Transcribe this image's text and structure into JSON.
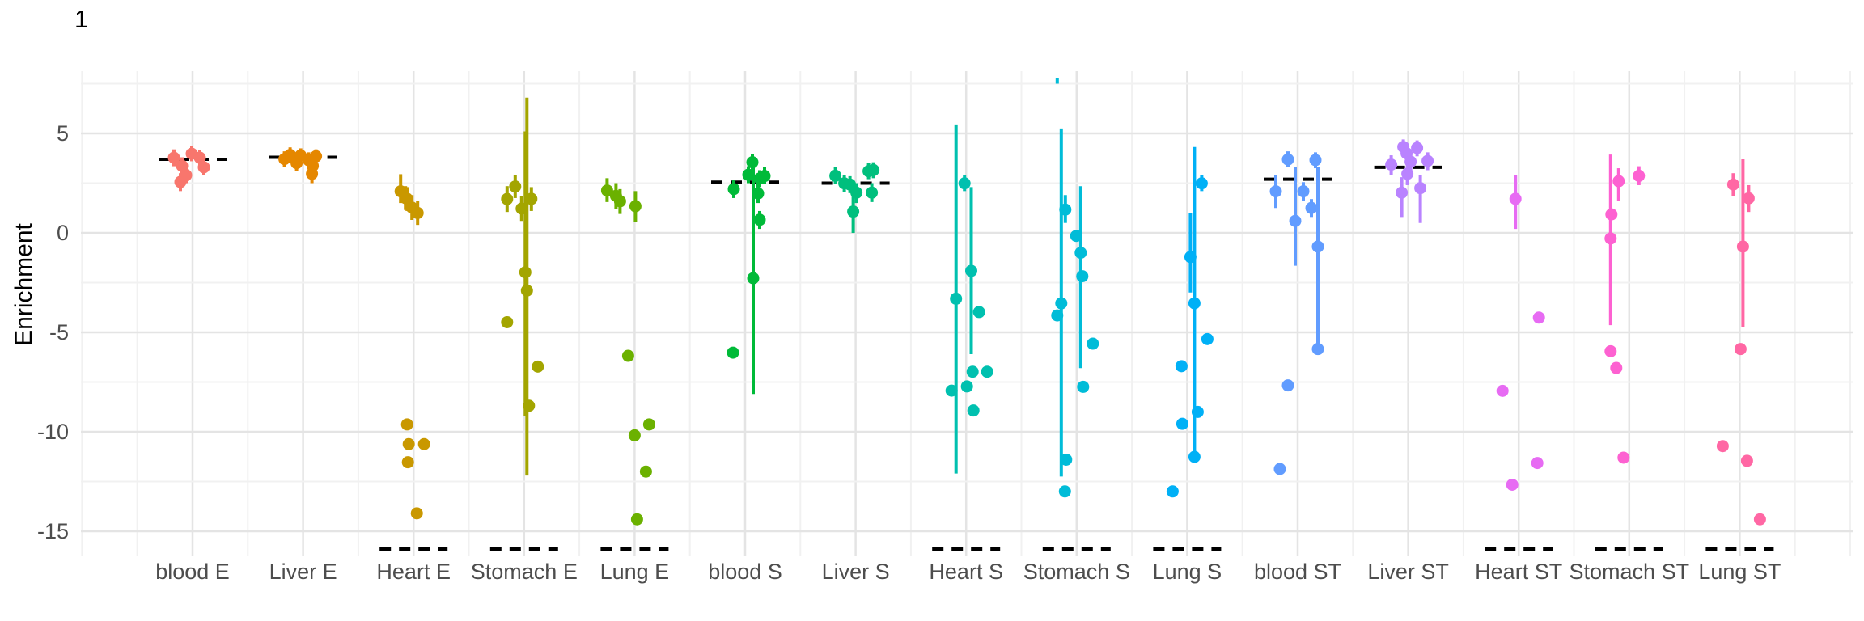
{
  "title": "1",
  "styles": {
    "background": "#ffffff",
    "grid_major": "#e4e4e4",
    "grid_minor": "#f1f1f1",
    "axis_text_color": "#4d4d4d",
    "mean_line_color": "#000000"
  },
  "chart_data": {
    "type": "scatter",
    "title": "1",
    "xlabel": "",
    "ylabel": "Enrichment",
    "ylim": [
      -16.26,
      8.13
    ],
    "y_major_ticks": [
      5,
      0,
      -5,
      -10,
      -15
    ],
    "y_minor_ticks": [
      7.5,
      2.5,
      -2.5,
      -7.5,
      -12.5
    ],
    "grid": true,
    "legend_position": "none",
    "point_style": "pointrange with dashed group-mean crossbar; means of Heart/Stomach/Lung groups fall below axis range and are drawn at panel bottom",
    "categories": [
      "blood E",
      "Liver E",
      "Heart E",
      "Stomach E",
      "Lung E",
      "blood S",
      "Liver S",
      "Heart S",
      "Stomach S",
      "Lung S",
      "blood ST",
      "Liver ST",
      "Heart ST",
      "Stomach ST",
      "Lung ST"
    ],
    "groups": [
      {
        "label": "blood E",
        "color": "#F8766D",
        "mean": 3.7,
        "mean_at_bottom": false,
        "points": [
          [
            -23,
            3.78,
            3.35,
            4.2
          ],
          [
            -13,
            3.37,
            2.95,
            3.8
          ],
          [
            -1,
            3.98,
            3.6,
            4.35
          ],
          [
            9,
            3.78,
            3.4,
            4.15
          ],
          [
            14,
            3.3,
            2.9,
            3.7
          ],
          [
            -8,
            2.9,
            2.5,
            3.3
          ],
          [
            -15,
            2.56,
            2.1,
            3.0
          ]
        ]
      },
      {
        "label": "Liver E",
        "color": "#E58700",
        "mean": 3.8,
        "mean_at_bottom": false,
        "points": [
          [
            -23,
            3.71,
            3.3,
            4.1
          ],
          [
            -16,
            3.92,
            3.5,
            4.3
          ],
          [
            -8,
            3.51,
            3.1,
            3.9
          ],
          [
            -3,
            3.89,
            3.5,
            4.25
          ],
          [
            7,
            3.65,
            3.2,
            4.05
          ],
          [
            12,
            3.37,
            2.95,
            3.8
          ],
          [
            11,
            2.97,
            2.5,
            3.45
          ],
          [
            16,
            3.85,
            3.45,
            4.2
          ]
        ]
      },
      {
        "label": "Heart E",
        "color": "#C99800",
        "mean": null,
        "mean_at_bottom": true,
        "points": [
          [
            -16,
            2.09,
            1.5,
            2.95
          ],
          [
            -10,
            1.75,
            1.15,
            2.35
          ],
          [
            -8,
            1.71,
            1.1,
            2.3
          ],
          [
            -2,
            1.27,
            0.65,
            1.9
          ],
          [
            5,
            1.0,
            0.4,
            1.6
          ],
          [
            -8,
            -9.63,
            null,
            null
          ],
          [
            -6,
            -10.62,
            null,
            null
          ],
          [
            13,
            -10.62,
            null,
            null
          ],
          [
            -7,
            -11.53,
            null,
            null
          ],
          [
            4,
            -14.1,
            null,
            null
          ]
        ]
      },
      {
        "label": "Stomach E",
        "color": "#A3A500",
        "mean": null,
        "mean_at_bottom": true,
        "points": [
          [
            -21,
            1.7,
            1.05,
            2.35
          ],
          [
            -11,
            2.33,
            1.75,
            2.9
          ],
          [
            -3,
            1.22,
            0.6,
            1.85
          ],
          [
            9,
            1.71,
            1.1,
            2.3
          ],
          [
            1.5,
            -1.98,
            -9.2,
            5.1
          ],
          [
            3.5,
            -2.9,
            -12.2,
            6.8
          ],
          [
            -21,
            -4.49,
            null,
            null
          ],
          [
            17,
            -6.72,
            null,
            null
          ],
          [
            6,
            -8.69,
            null,
            null
          ]
        ]
      },
      {
        "label": "Lung E",
        "color": "#6BB100",
        "mean": null,
        "mean_at_bottom": true,
        "points": [
          [
            -34,
            2.13,
            1.55,
            2.75
          ],
          [
            -23,
            1.86,
            1.2,
            2.5
          ],
          [
            -18,
            1.59,
            0.95,
            2.2
          ],
          [
            1,
            1.34,
            0.55,
            2.1
          ],
          [
            -8,
            -6.18,
            null,
            null
          ],
          [
            18,
            -9.63,
            null,
            null
          ],
          [
            0,
            -10.18,
            null,
            null
          ],
          [
            14,
            -12.0,
            null,
            null
          ],
          [
            3,
            -14.4,
            null,
            null
          ]
        ]
      },
      {
        "label": "blood S",
        "color": "#00BA38",
        "mean": 2.55,
        "mean_at_bottom": false,
        "points": [
          [
            -14,
            2.2,
            1.75,
            2.65
          ],
          [
            4,
            2.92,
            2.5,
            3.35
          ],
          [
            9,
            3.55,
            3.15,
            3.95
          ],
          [
            18,
            2.73,
            2.3,
            3.15
          ],
          [
            24,
            2.86,
            2.45,
            3.3
          ],
          [
            16,
            1.98,
            1.5,
            2.45
          ],
          [
            18,
            0.66,
            0.2,
            1.1
          ],
          [
            10,
            -2.28,
            -8.1,
            3.6
          ],
          [
            -15,
            -6.02,
            null,
            null
          ]
        ]
      },
      {
        "label": "Liver S",
        "color": "#00BF7D",
        "mean": 2.5,
        "mean_at_bottom": false,
        "points": [
          [
            -25,
            2.87,
            2.45,
            3.3
          ],
          [
            -14,
            2.49,
            2.05,
            2.9
          ],
          [
            -7,
            2.43,
            2.0,
            2.85
          ],
          [
            1,
            2.02,
            1.5,
            2.5
          ],
          [
            -3,
            1.07,
            0.0,
            2.1
          ],
          [
            16,
            3.1,
            2.7,
            3.5
          ],
          [
            22,
            3.16,
            2.75,
            3.55
          ],
          [
            20,
            2.02,
            1.55,
            2.5
          ]
        ]
      },
      {
        "label": "Heart S",
        "color": "#00C0AF",
        "mean": null,
        "mean_at_bottom": true,
        "points": [
          [
            -2,
            2.49,
            2.1,
            2.9
          ],
          [
            -12.5,
            -3.31,
            -12.1,
            5.45
          ],
          [
            6.3,
            -1.91,
            -6.1,
            2.3
          ],
          [
            16,
            -3.98,
            null,
            null
          ],
          [
            8,
            -6.98,
            null,
            null
          ],
          [
            26,
            -6.98,
            null,
            null
          ],
          [
            1,
            -7.72,
            null,
            null
          ],
          [
            -18,
            -7.93,
            null,
            null
          ],
          [
            9,
            -8.93,
            null,
            null
          ]
        ]
      },
      {
        "label": "Stomach S",
        "color": "#00BCD8",
        "mean": null,
        "mean_at_bottom": true,
        "points": [
          [
            -14,
            1.17,
            0.5,
            1.9
          ],
          [
            -0.5,
            -0.15,
            null,
            null
          ],
          [
            -19,
            -3.54,
            -12.25,
            5.25
          ],
          [
            5,
            -1.0,
            -6.8,
            2.35
          ],
          [
            7,
            -2.18,
            null,
            null
          ],
          [
            -24,
            -4.15,
            null,
            null
          ],
          [
            20,
            -5.57,
            null,
            null
          ],
          [
            8,
            -7.74,
            null,
            null
          ],
          [
            -13,
            -11.4,
            null,
            null
          ],
          [
            -14.5,
            -13.0,
            null,
            null
          ]
        ],
        "extra_tick": {
          "dx": -24,
          "from": 7.5,
          "to": 7.8
        }
      },
      {
        "label": "Lung S",
        "color": "#00B0F6",
        "mean": null,
        "mean_at_bottom": true,
        "points": [
          [
            18,
            2.49,
            2.1,
            2.9
          ],
          [
            4,
            -1.21,
            -3.0,
            1.0
          ],
          [
            9,
            -3.54,
            -11.46,
            4.32
          ],
          [
            25,
            -5.34,
            null,
            null
          ],
          [
            -7,
            -6.7,
            null,
            null
          ],
          [
            13,
            -9.0,
            null,
            null
          ],
          [
            -6,
            -9.6,
            null,
            null
          ],
          [
            9,
            -11.26,
            null,
            null
          ],
          [
            -18,
            -13.0,
            null,
            null
          ]
        ]
      },
      {
        "label": "blood ST",
        "color": "#619CFF",
        "mean": 2.7,
        "mean_at_bottom": false,
        "points": [
          [
            -12,
            3.69,
            3.3,
            4.1
          ],
          [
            22,
            3.66,
            3.25,
            4.05
          ],
          [
            -27,
            2.09,
            1.25,
            2.9
          ],
          [
            7,
            2.09,
            1.6,
            2.55
          ],
          [
            17,
            1.25,
            0.8,
            1.7
          ],
          [
            -3,
            0.6,
            -1.65,
            3.3
          ],
          [
            25,
            -0.69,
            -5.84,
            3.3
          ],
          [
            25,
            -5.84,
            null,
            null
          ],
          [
            -12,
            -7.67,
            null,
            null
          ],
          [
            -22,
            -11.87,
            null,
            null
          ]
        ]
      },
      {
        "label": "Liver ST",
        "color": "#B983FF",
        "mean": 3.3,
        "mean_at_bottom": false,
        "points": [
          [
            -21,
            3.43,
            2.9,
            3.9
          ],
          [
            -6,
            4.32,
            3.9,
            4.7
          ],
          [
            -2,
            4.0,
            3.5,
            4.4
          ],
          [
            11,
            4.27,
            3.85,
            4.65
          ],
          [
            3,
            3.58,
            3.1,
            4.0
          ],
          [
            -1,
            2.97,
            2.4,
            3.5
          ],
          [
            -8,
            2.02,
            0.8,
            2.8
          ],
          [
            15,
            2.25,
            0.5,
            2.9
          ],
          [
            24,
            3.62,
            3.15,
            4.05
          ]
        ]
      },
      {
        "label": "Heart ST",
        "color": "#E76BF3",
        "mean": null,
        "mean_at_bottom": true,
        "points": [
          [
            -4,
            1.71,
            0.2,
            2.9
          ],
          [
            25,
            -4.26,
            null,
            null
          ],
          [
            -20,
            -7.94,
            null,
            null
          ],
          [
            23,
            -11.57,
            null,
            null
          ],
          [
            -8,
            -12.66,
            null,
            null
          ]
        ]
      },
      {
        "label": "Stomach ST",
        "color": "#FD61D1",
        "mean": null,
        "mean_at_bottom": true,
        "points": [
          [
            -13,
            2.6,
            1.6,
            3.25
          ],
          [
            12,
            2.87,
            2.4,
            3.35
          ],
          [
            -22,
            0.93,
            null,
            null
          ],
          [
            -23,
            -0.28,
            -4.64,
            3.94
          ],
          [
            -23,
            -5.95,
            null,
            null
          ],
          [
            -16,
            -6.79,
            null,
            null
          ],
          [
            -7,
            -11.3,
            null,
            null
          ]
        ]
      },
      {
        "label": "Lung ST",
        "color": "#FF67A4",
        "mean": null,
        "mean_at_bottom": true,
        "points": [
          [
            -8,
            2.43,
            1.85,
            3.0
          ],
          [
            11,
            1.74,
            1.05,
            2.4
          ],
          [
            4,
            -0.69,
            -4.72,
            3.7
          ],
          [
            1,
            -5.84,
            null,
            null
          ],
          [
            -21,
            -10.72,
            null,
            null
          ],
          [
            9,
            -11.46,
            null,
            null
          ],
          [
            25,
            -14.4,
            null,
            null
          ]
        ]
      }
    ]
  }
}
